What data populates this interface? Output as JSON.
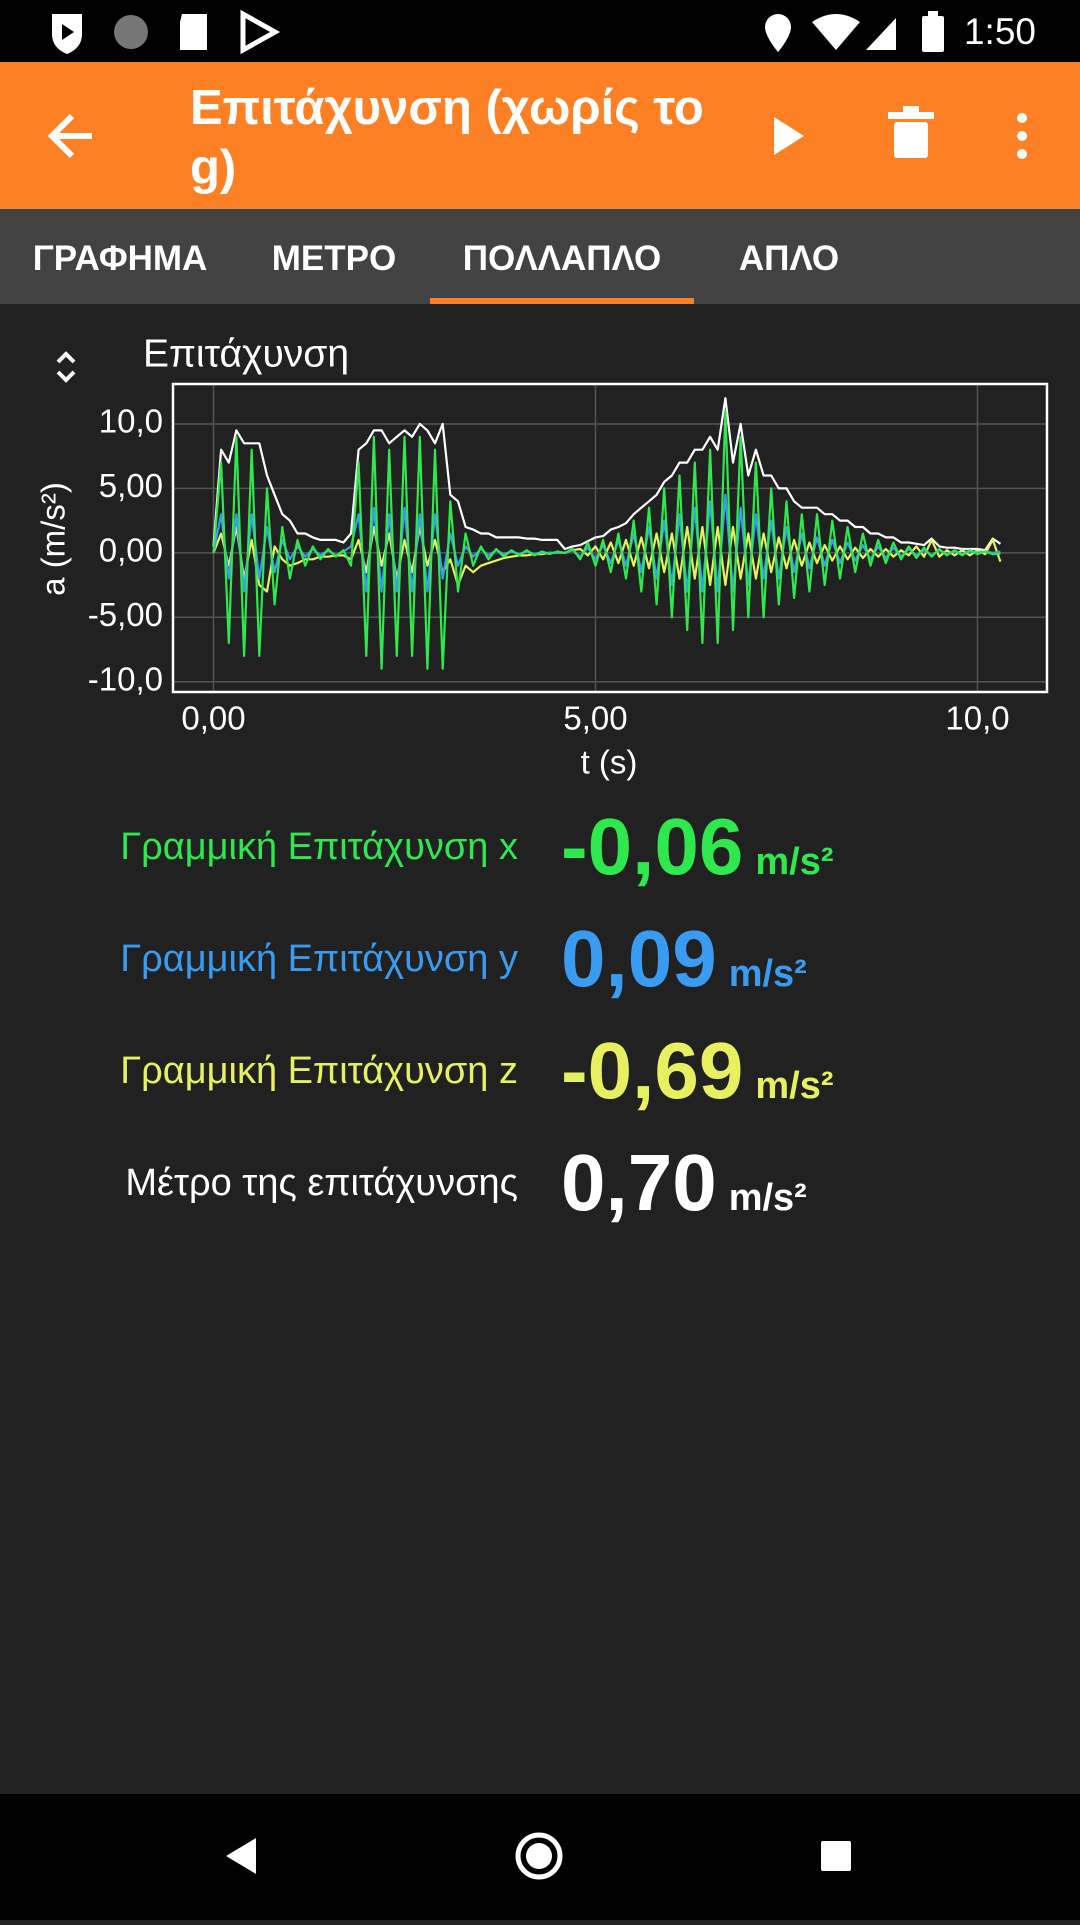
{
  "status_bar": {
    "time": "1:50"
  },
  "toolbar": {
    "title": "Επιτάχυνση (χωρίς το g)"
  },
  "tabs": [
    "ΓΡΑΦΗΜΑ",
    "ΜΕΤΡΟ",
    "ΠΟΛΛΑΠΛΟ",
    "ΑΠΛΟ"
  ],
  "selected_tab": 2,
  "chart_data": {
    "type": "line",
    "title": "Επιτάχυνση",
    "xlabel": "t (s)",
    "ylabel": "a (m/s²)",
    "x": [
      0,
      0.1,
      0.2,
      0.3,
      0.4,
      0.5,
      0.6,
      0.7,
      0.8,
      0.9,
      1,
      1.1,
      1.2,
      1.3,
      1.4,
      1.5,
      1.6,
      1.7,
      1.8,
      1.9,
      2,
      2.1,
      2.2,
      2.3,
      2.4,
      2.5,
      2.6,
      2.7,
      2.8,
      2.9,
      3,
      3.1,
      3.2,
      3.3,
      3.4,
      3.5,
      3.6,
      3.7,
      3.8,
      3.9,
      4,
      4.1,
      4.2,
      4.3,
      4.4,
      4.5,
      4.6,
      4.7,
      4.8,
      4.9,
      5,
      5.1,
      5.2,
      5.3,
      5.4,
      5.5,
      5.6,
      5.7,
      5.8,
      5.9,
      6,
      6.1,
      6.2,
      6.3,
      6.4,
      6.5,
      6.6,
      6.7,
      6.8,
      6.9,
      7,
      7.1,
      7.2,
      7.3,
      7.4,
      7.5,
      7.6,
      7.7,
      7.8,
      7.9,
      8,
      8.1,
      8.2,
      8.3,
      8.4,
      8.5,
      8.6,
      8.7,
      8.8,
      8.9,
      9,
      9.1,
      9.2,
      9.3,
      9.4,
      9.5,
      9.6,
      9.7,
      9.8,
      9.9,
      10,
      10.1,
      10.2,
      10.3
    ],
    "series": [
      {
        "color": "#ffffff",
        "values": [
          0.5,
          8,
          7,
          9.5,
          8.5,
          8.5,
          8.5,
          6,
          4.5,
          3,
          2.5,
          1.5,
          1.5,
          1.2,
          1,
          1,
          1,
          0.8,
          1.5,
          8,
          8.5,
          9.5,
          9.5,
          8.5,
          9,
          9.5,
          9,
          10,
          9.5,
          8.5,
          10,
          4.5,
          4,
          2,
          1.8,
          1.5,
          1.5,
          1.2,
          1.2,
          1.2,
          1.2,
          1.1,
          1.1,
          1,
          1,
          1,
          0.3,
          0.5,
          0.6,
          0.9,
          1.2,
          1.3,
          1.8,
          2,
          2.3,
          3,
          3.5,
          4,
          4.5,
          5.5,
          6,
          7,
          7,
          8,
          8,
          9,
          8,
          12,
          7,
          10,
          6,
          8,
          6,
          6,
          5,
          5,
          4,
          3.5,
          3.5,
          3.5,
          3,
          3,
          2.5,
          2.5,
          2,
          2,
          1.5,
          1.5,
          1.2,
          1.2,
          0.8,
          0.8,
          0.7,
          0.6,
          1.1,
          0.5,
          0.4,
          0.4,
          0.3,
          0.3,
          0.3,
          0.2,
          1.1,
          0.7
        ]
      },
      {
        "color": "#e6f060",
        "values": [
          0,
          1.5,
          -1,
          2,
          -2,
          1,
          -2.5,
          -3,
          0.5,
          -0.5,
          -1,
          -0.8,
          -0.5,
          -0.5,
          -0.3,
          -0.3,
          -0.2,
          -0.2,
          -0.5,
          1,
          -1.5,
          2,
          -1,
          1.5,
          -2,
          1,
          -1.5,
          2,
          -1,
          1,
          -1.5,
          -0.5,
          -2.5,
          -1,
          -1.5,
          -1,
          -0.8,
          -0.6,
          -0.4,
          -0.3,
          -0.2,
          -0.2,
          -0.1,
          -0.1,
          0,
          0,
          0,
          0.2,
          0.3,
          -0.2,
          0.5,
          -0.5,
          0.8,
          -0.8,
          1,
          -1,
          1.2,
          -1.2,
          1.5,
          -1.5,
          1.5,
          -2,
          2,
          -2,
          2,
          -2.5,
          2,
          -2.5,
          2,
          -2,
          1.5,
          -2,
          1.5,
          -1.5,
          1.2,
          -1.2,
          1,
          -1,
          0.8,
          -0.8,
          0.6,
          -0.6,
          0.5,
          -0.5,
          0.4,
          -0.4,
          0.3,
          -0.3,
          0.3,
          -0.3,
          0.2,
          -0.2,
          0.5,
          -0.3,
          1,
          -0.3,
          0.2,
          -0.2,
          0.2,
          -0.2,
          0.2,
          -0.1,
          1,
          -0.69
        ]
      },
      {
        "color": "#3a9cf0",
        "values": [
          0,
          3,
          -2,
          3,
          -3,
          3,
          -2,
          2,
          -1.5,
          1,
          -0.5,
          0.5,
          -0.3,
          0.3,
          -0.2,
          0.2,
          -0.2,
          0.1,
          0.5,
          3,
          -3,
          3.5,
          -3,
          3,
          -3,
          3.5,
          -3,
          3,
          -3,
          3,
          -2,
          1.5,
          -1,
          0.5,
          -0.3,
          0.3,
          -0.2,
          0.2,
          -0.1,
          0.1,
          -0.1,
          0.1,
          -0.1,
          0,
          0,
          0,
          0,
          0.2,
          -0.3,
          0.4,
          -0.5,
          0.6,
          -0.8,
          1,
          -1,
          1.5,
          -1.5,
          2,
          -2,
          2.5,
          -2.5,
          3,
          -3,
          3.5,
          -3,
          4,
          -3,
          4.5,
          -3,
          3.5,
          -2.5,
          3,
          -2,
          2.5,
          -2,
          2,
          -1.5,
          1.5,
          -1.2,
          1.2,
          -1,
          1,
          -0.8,
          0.8,
          -0.6,
          0.6,
          -0.5,
          0.5,
          -0.4,
          0.4,
          -0.3,
          0.3,
          -0.2,
          0.2,
          -0.2,
          0.2,
          -0.1,
          0.1,
          -0.1,
          0.1,
          0,
          0.1,
          0,
          0.09
        ]
      },
      {
        "color": "#2ee84e",
        "values": [
          0,
          7,
          -7,
          9,
          -8,
          8,
          -8,
          5,
          -4,
          2,
          -2,
          1,
          -1,
          0.5,
          -0.5,
          0.3,
          -0.3,
          0.2,
          -1,
          7,
          -8,
          9,
          -9,
          8,
          -8,
          9,
          -8,
          9,
          -9,
          8,
          -9,
          4,
          -3,
          1.5,
          -1,
          0.5,
          -0.5,
          0.3,
          -0.3,
          0.2,
          -0.2,
          0.2,
          -0.2,
          0.1,
          -0.1,
          0.1,
          0,
          0.3,
          -0.5,
          0.8,
          -1,
          1,
          -1.5,
          1.5,
          -2,
          2.5,
          -3,
          3.5,
          -4,
          5,
          -5,
          6,
          -6,
          7,
          -7,
          8,
          -7,
          11,
          -6,
          9,
          -5,
          7,
          -5,
          5,
          -4,
          4,
          -3.5,
          3,
          -3,
          3,
          -2.5,
          2.5,
          -2,
          2,
          -1.5,
          1.5,
          -1,
          1,
          -0.8,
          0.8,
          -0.5,
          0.5,
          -0.4,
          0.4,
          -0.3,
          0.3,
          -0.2,
          0.2,
          -0.2,
          0.2,
          -0.1,
          0.1,
          -0.1,
          -0.06
        ]
      }
    ],
    "xlim": [
      -0.53,
      10.91
    ],
    "ylim": [
      -10.8,
      13.1
    ],
    "xticks": [
      {
        "value": 0,
        "label": "0,00"
      },
      {
        "value": 5,
        "label": "5,00"
      },
      {
        "value": 10,
        "label": "10,0"
      }
    ],
    "yticks": [
      {
        "value": -10,
        "label": "-10,0"
      },
      {
        "value": -5,
        "label": "-5,00"
      },
      {
        "value": 0,
        "label": "0,00"
      },
      {
        "value": 5,
        "label": "5,00"
      },
      {
        "value": 10,
        "label": "10,0"
      }
    ],
    "grid": true
  },
  "readouts": [
    {
      "label": "Γραμμική Επιτάχυνση x",
      "value": "-0,06",
      "unit": "m/s²",
      "color": "#2ee84e"
    },
    {
      "label": "Γραμμική Επιτάχυνση y",
      "value": "0,09",
      "unit": "m/s²",
      "color": "#3a9cf0"
    },
    {
      "label": "Γραμμική Επιτάχυνση z",
      "value": "-0,69",
      "unit": "m/s²",
      "color": "#e6f060"
    },
    {
      "label": "Μέτρο της επιτάχυνσης",
      "value": "0,70",
      "unit": "m/s²",
      "color": "#ffffff"
    }
  ]
}
